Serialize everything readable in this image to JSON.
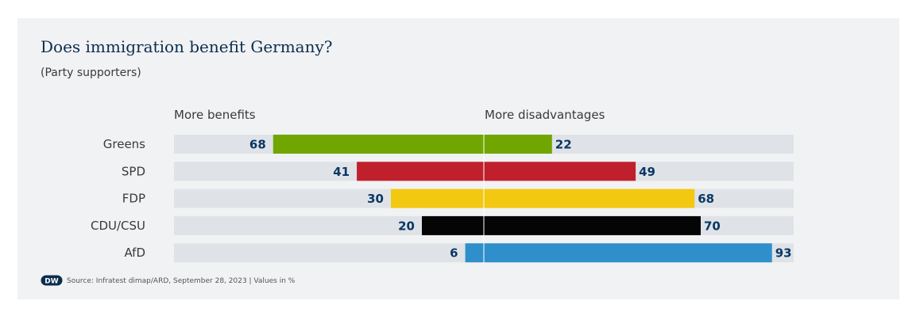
{
  "chart_title": "Does immigration benefit Germany?",
  "chart_subtitle": "(Party supporters)",
  "chart_data": {
    "type": "bar",
    "orientation": "diverging-horizontal",
    "categories": [
      "Greens",
      "SPD",
      "FDP",
      "CDU/CSU",
      "AfD"
    ],
    "series": [
      {
        "name": "More benefits",
        "values": [
          68,
          41,
          30,
          20,
          6
        ]
      },
      {
        "name": "More disadvantages",
        "values": [
          22,
          49,
          68,
          70,
          93
        ]
      }
    ],
    "range": [
      0,
      100
    ],
    "colors": [
      "#71a600",
      "#c0202c",
      "#f2c811",
      "#050505",
      "#2f8fcb"
    ],
    "track_color": "#dfe3e7",
    "label_color": "#0b3765"
  },
  "source_text": "Source: Infratest dimap/ARD, September 28, 2023 | Values in %",
  "logo_text": "DW"
}
